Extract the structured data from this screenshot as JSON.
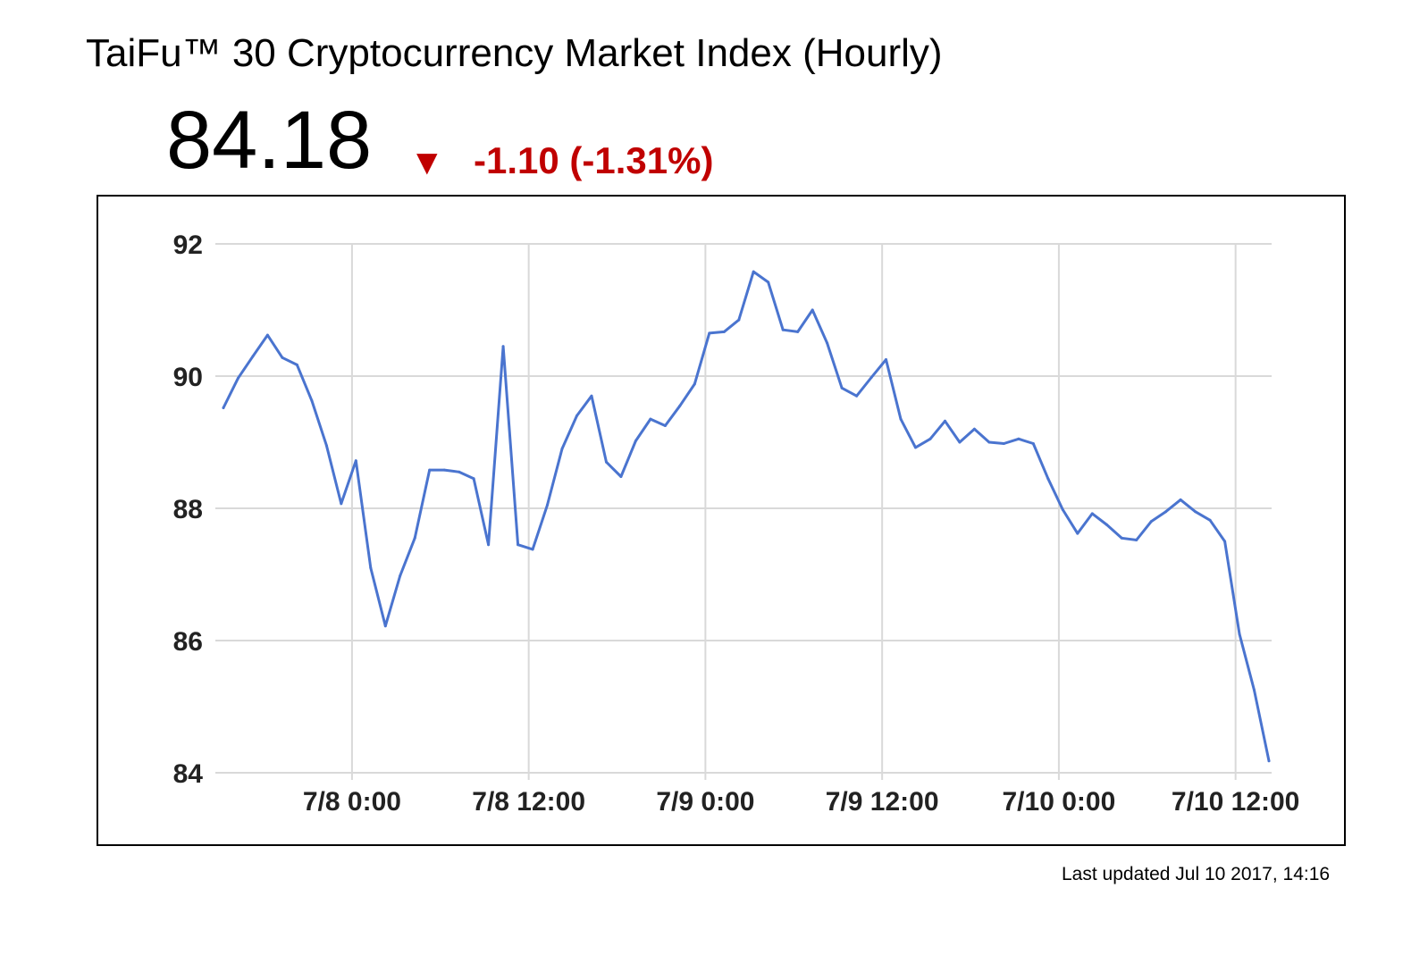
{
  "header": {
    "title": "TaiFu™ 30 Cryptocurrency Market Index (Hourly)",
    "price": "84.18",
    "direction_symbol": "▼",
    "change": "-1.10 (-1.31%)"
  },
  "footer": {
    "updated": "Last updated Jul 10 2017, 14:16"
  },
  "colors": {
    "line": "#4a74cf",
    "down": "#c00000",
    "grid": "#d9d9d9"
  },
  "chart_data": {
    "type": "line",
    "title": "",
    "xlabel": "",
    "ylabel": "",
    "ylim": [
      84,
      92
    ],
    "y_ticks": [
      92,
      90,
      88,
      86,
      84
    ],
    "x_ticks": [
      {
        "value": "2017-07-08 00:00",
        "label": "7/8 0:00"
      },
      {
        "value": "2017-07-08 12:00",
        "label": "7/8 12:00"
      },
      {
        "value": "2017-07-09 00:00",
        "label": "7/9 0:00"
      },
      {
        "value": "2017-07-09 12:00",
        "label": "7/9 12:00"
      },
      {
        "value": "2017-07-10 00:00",
        "label": "7/10 0:00"
      },
      {
        "value": "2017-07-10 12:00",
        "label": "7/10 12:00"
      }
    ],
    "grid": true,
    "legend": "none",
    "series": [
      {
        "values": [
          [
            "2017-07-07 15:16",
            89.52
          ],
          [
            "2017-07-07 16:16",
            89.97
          ],
          [
            "2017-07-07 17:16",
            90.3
          ],
          [
            "2017-07-07 18:16",
            90.62
          ],
          [
            "2017-07-07 19:16",
            90.28
          ],
          [
            "2017-07-07 20:16",
            90.17
          ],
          [
            "2017-07-07 21:16",
            89.63
          ],
          [
            "2017-07-07 22:16",
            88.95
          ],
          [
            "2017-07-07 23:16",
            88.07
          ],
          [
            "2017-07-08 00:16",
            88.72
          ],
          [
            "2017-07-08 01:16",
            87.1
          ],
          [
            "2017-07-08 02:16",
            86.22
          ],
          [
            "2017-07-08 03:16",
            86.98
          ],
          [
            "2017-07-08 04:16",
            87.55
          ],
          [
            "2017-07-08 05:16",
            88.58
          ],
          [
            "2017-07-08 06:16",
            88.58
          ],
          [
            "2017-07-08 07:16",
            88.55
          ],
          [
            "2017-07-08 08:16",
            88.45
          ],
          [
            "2017-07-08 09:16",
            87.45
          ],
          [
            "2017-07-08 10:16",
            90.45
          ],
          [
            "2017-07-08 11:16",
            87.45
          ],
          [
            "2017-07-08 12:16",
            87.38
          ],
          [
            "2017-07-08 13:16",
            88.05
          ],
          [
            "2017-07-08 14:16",
            88.9
          ],
          [
            "2017-07-08 15:16",
            89.4
          ],
          [
            "2017-07-08 16:16",
            89.7
          ],
          [
            "2017-07-08 17:16",
            88.7
          ],
          [
            "2017-07-08 18:16",
            88.48
          ],
          [
            "2017-07-08 19:16",
            89.02
          ],
          [
            "2017-07-08 20:16",
            89.35
          ],
          [
            "2017-07-08 21:16",
            89.25
          ],
          [
            "2017-07-08 22:16",
            89.55
          ],
          [
            "2017-07-08 23:16",
            89.88
          ],
          [
            "2017-07-09 00:16",
            90.65
          ],
          [
            "2017-07-09 01:16",
            90.67
          ],
          [
            "2017-07-09 02:16",
            90.85
          ],
          [
            "2017-07-09 03:16",
            91.58
          ],
          [
            "2017-07-09 04:16",
            91.42
          ],
          [
            "2017-07-09 05:16",
            90.7
          ],
          [
            "2017-07-09 06:16",
            90.67
          ],
          [
            "2017-07-09 07:16",
            91.0
          ],
          [
            "2017-07-09 08:16",
            90.5
          ],
          [
            "2017-07-09 09:16",
            89.82
          ],
          [
            "2017-07-09 10:16",
            89.7
          ],
          [
            "2017-07-09 11:16",
            89.98
          ],
          [
            "2017-07-09 12:16",
            90.25
          ],
          [
            "2017-07-09 13:16",
            89.35
          ],
          [
            "2017-07-09 14:16",
            88.92
          ],
          [
            "2017-07-09 15:16",
            89.05
          ],
          [
            "2017-07-09 16:16",
            89.32
          ],
          [
            "2017-07-09 17:16",
            89.0
          ],
          [
            "2017-07-09 18:16",
            89.2
          ],
          [
            "2017-07-09 19:16",
            89.0
          ],
          [
            "2017-07-09 20:16",
            88.98
          ],
          [
            "2017-07-09 21:16",
            89.05
          ],
          [
            "2017-07-09 22:16",
            88.98
          ],
          [
            "2017-07-09 23:16",
            88.45
          ],
          [
            "2017-07-10 00:16",
            87.98
          ],
          [
            "2017-07-10 01:16",
            87.62
          ],
          [
            "2017-07-10 02:16",
            87.92
          ],
          [
            "2017-07-10 03:16",
            87.75
          ],
          [
            "2017-07-10 04:16",
            87.55
          ],
          [
            "2017-07-10 05:16",
            87.52
          ],
          [
            "2017-07-10 06:16",
            87.8
          ],
          [
            "2017-07-10 07:16",
            87.95
          ],
          [
            "2017-07-10 08:16",
            88.13
          ],
          [
            "2017-07-10 09:16",
            87.95
          ],
          [
            "2017-07-10 10:16",
            87.82
          ],
          [
            "2017-07-10 11:16",
            87.5
          ],
          [
            "2017-07-10 12:16",
            86.1
          ],
          [
            "2017-07-10 13:16",
            85.25
          ],
          [
            "2017-07-10 14:16",
            84.18
          ]
        ]
      }
    ]
  }
}
